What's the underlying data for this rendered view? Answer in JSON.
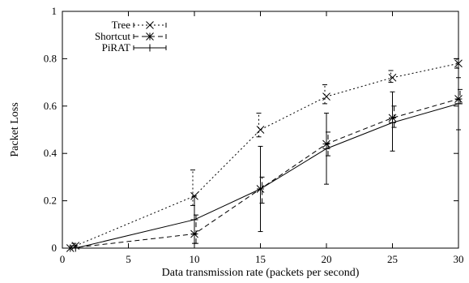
{
  "chart_data": {
    "type": "line",
    "title": "",
    "xlabel": "Data transmission rate (packets per second)",
    "ylabel": "Packet Loss",
    "xlim": [
      0,
      30
    ],
    "ylim": [
      0,
      1
    ],
    "xticks": [
      0,
      5,
      10,
      15,
      20,
      25,
      30
    ],
    "yticks": [
      0,
      0.2,
      0.4,
      0.6,
      0.8,
      1
    ],
    "xtick_labels": [
      "0",
      "5",
      "10",
      "15",
      "20",
      "25",
      "30"
    ],
    "ytick_labels": [
      "0",
      "0.2",
      "0.4",
      "0.6",
      "0.8",
      "1"
    ],
    "grid": false,
    "legend_position": "top-left",
    "series": [
      {
        "name": "Tree",
        "marker": "x",
        "line_style": "dotted",
        "x": [
          1,
          10,
          15,
          20,
          25,
          30
        ],
        "y": [
          0.01,
          0.22,
          0.5,
          0.64,
          0.72,
          0.78
        ],
        "err_low": [
          0.0,
          0.18,
          0.47,
          0.61,
          0.7,
          0.76
        ],
        "err_high": [
          0.02,
          0.33,
          0.57,
          0.69,
          0.75,
          0.8
        ]
      },
      {
        "name": "Shortcut",
        "marker": "asterisk",
        "line_style": "dashed",
        "x": [
          0.6,
          10,
          15,
          20,
          25,
          30
        ],
        "y": [
          0.0,
          0.06,
          0.25,
          0.44,
          0.55,
          0.63
        ],
        "err_low": [
          0.0,
          0.02,
          0.19,
          0.39,
          0.51,
          0.61
        ],
        "err_high": [
          0.01,
          0.14,
          0.3,
          0.49,
          0.6,
          0.67
        ]
      },
      {
        "name": "PiRAT",
        "marker": "plus",
        "line_style": "solid",
        "x": [
          1,
          10,
          15,
          20,
          25,
          30
        ],
        "y": [
          0.0,
          0.12,
          0.25,
          0.42,
          0.53,
          0.61
        ],
        "err_low": [
          0.0,
          0.02,
          0.07,
          0.27,
          0.41,
          0.5
        ],
        "err_high": [
          0.01,
          0.22,
          0.43,
          0.57,
          0.66,
          0.72
        ]
      }
    ]
  }
}
